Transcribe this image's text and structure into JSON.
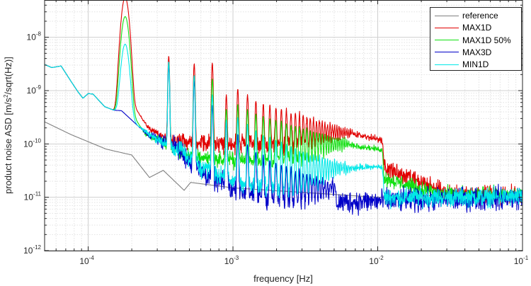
{
  "chart_data": {
    "type": "line",
    "xscale": "log",
    "yscale": "log",
    "xlabel": "frequency [Hz]",
    "ylabel_parts": [
      "product noise ASD [m/s",
      "2",
      "/sqrt(Hz)]"
    ],
    "xlim": [
      5e-05,
      0.1
    ],
    "ylim": [
      1e-12,
      5e-08
    ],
    "grid": "major and minor",
    "legend_position": "top-right",
    "x_ticks": [
      {
        "value": 0.0001,
        "base": "10",
        "exp": "-4"
      },
      {
        "value": 0.001,
        "base": "10",
        "exp": "-3"
      },
      {
        "value": 0.01,
        "base": "10",
        "exp": "-2"
      },
      {
        "value": 0.1,
        "base": "10",
        "exp": "-1"
      }
    ],
    "y_ticks": [
      {
        "value": 1e-12,
        "base": "10",
        "exp": "-12"
      },
      {
        "value": 1e-11,
        "base": "10",
        "exp": "-11"
      },
      {
        "value": 1e-10,
        "base": "10",
        "exp": "-10"
      },
      {
        "value": 1e-09,
        "base": "10",
        "exp": "-9"
      },
      {
        "value": 1e-08,
        "base": "10",
        "exp": "-8"
      }
    ],
    "harmonic_fundamental_hz": 0.00018,
    "harmonic_count": 60,
    "series": [
      {
        "name": "reference",
        "color": "#808080",
        "noise_dex": 0.0,
        "baseline": [
          [
            5e-05,
            2.6e-10
          ],
          [
            7.6e-05,
            1.5e-10
          ],
          [
            0.000133,
            8e-11
          ],
          [
            0.0002,
            6.2e-11
          ],
          [
            0.000265,
            2.35e-11
          ],
          [
            0.00033,
            3.2e-11
          ],
          [
            0.00046,
            1.35e-11
          ],
          [
            0.00051,
            1.9e-11
          ],
          [
            0.001,
            1.5e-11
          ],
          [
            0.01,
            1e-11
          ],
          [
            0.1,
            1.2e-11
          ]
        ],
        "peaks": []
      },
      {
        "name": "MAX1D",
        "color": "#e00000",
        "noise_dex": 0.12,
        "baseline": [
          [
            5e-05,
            3.1e-09
          ],
          [
            5.6e-05,
            2.7e-09
          ],
          [
            6.5e-05,
            2.9e-09
          ],
          [
            7.6e-05,
            1.5e-09
          ],
          [
            8.5e-05,
            9.5e-10
          ],
          [
            9.2e-05,
            7.2e-10
          ],
          [
            0.0001,
            8.8e-10
          ],
          [
            0.000108,
            8.6e-10
          ],
          [
            0.00013,
            5e-10
          ],
          [
            0.00015,
            4.3e-10
          ],
          [
            0.000165,
            4.5e-10
          ],
          [
            0.000195,
            6e-10
          ],
          [
            0.00022,
            4e-10
          ],
          [
            0.00026,
            2e-10
          ],
          [
            0.00032,
            1.4e-10
          ],
          [
            0.0005,
            1.1e-10
          ],
          [
            0.001,
            1e-10
          ],
          [
            0.003,
            9e-11
          ],
          [
            0.006,
            6e-11
          ],
          [
            0.01,
            4e-11
          ],
          [
            0.02,
            1.8e-11
          ],
          [
            0.03,
            1.2e-11
          ],
          [
            0.1,
            1.1e-11
          ]
        ],
        "peaks": [
          [
            0.00018,
            5.5e-08
          ],
          [
            0.00036,
            4.3e-09
          ],
          [
            0.00054,
            3.1e-09
          ],
          [
            0.00072,
            3.2e-09
          ],
          [
            0.0009,
            7e-10
          ],
          [
            0.00108,
            1e-09
          ],
          [
            0.0015,
            5e-10
          ],
          [
            0.003,
            2.5e-10
          ],
          [
            0.006,
            1.3e-10
          ],
          [
            0.01,
            6e-11
          ],
          [
            0.02,
            2e-11
          ]
        ]
      },
      {
        "name": "MAX1D 50%",
        "color": "#10e010",
        "noise_dex": 0.1,
        "baseline": [
          [
            5e-05,
            3.1e-09
          ],
          [
            5.6e-05,
            2.7e-09
          ],
          [
            6.5e-05,
            2.9e-09
          ],
          [
            7.6e-05,
            1.5e-09
          ],
          [
            8.5e-05,
            9.5e-10
          ],
          [
            9.2e-05,
            7.2e-10
          ],
          [
            0.0001,
            8.8e-10
          ],
          [
            0.000108,
            8.6e-10
          ],
          [
            0.00013,
            5e-10
          ],
          [
            0.00015,
            4.3e-10
          ],
          [
            0.000165,
            4.4e-10
          ],
          [
            0.00019,
            4.5e-10
          ],
          [
            0.00025,
            1.5e-10
          ],
          [
            0.00035,
            1e-10
          ],
          [
            0.0005,
            6e-11
          ],
          [
            0.0008,
            5e-11
          ],
          [
            0.003,
            4.8e-11
          ],
          [
            0.006,
            3.5e-11
          ],
          [
            0.01,
            2.5e-11
          ],
          [
            0.02,
            1.4e-11
          ],
          [
            0.03,
            1.1e-11
          ],
          [
            0.1,
            1.1e-11
          ]
        ],
        "peaks": [
          [
            0.00018,
            2.4e-08
          ],
          [
            0.00036,
            3.3e-09
          ],
          [
            0.00054,
            1.9e-09
          ],
          [
            0.00072,
            1.6e-09
          ],
          [
            0.0009,
            4e-10
          ],
          [
            0.00108,
            5e-10
          ],
          [
            0.0015,
            3e-10
          ],
          [
            0.003,
            1.5e-10
          ],
          [
            0.006,
            8e-11
          ],
          [
            0.01,
            4e-11
          ],
          [
            0.02,
            1.5e-11
          ]
        ]
      },
      {
        "name": "MAX3D",
        "color": "#0000c8",
        "noise_dex": 0.15,
        "baseline": [
          [
            5e-05,
            3.1e-09
          ],
          [
            5.6e-05,
            2.7e-09
          ],
          [
            6.5e-05,
            2.9e-09
          ],
          [
            7.6e-05,
            1.5e-09
          ],
          [
            8.5e-05,
            9.5e-10
          ],
          [
            9.2e-05,
            7.2e-10
          ],
          [
            0.0001,
            8.8e-10
          ],
          [
            0.000108,
            8.6e-10
          ],
          [
            0.00013,
            5e-10
          ],
          [
            0.00015,
            4.3e-10
          ],
          [
            0.00017,
            4.2e-10
          ],
          [
            0.00022,
            2.2e-10
          ],
          [
            0.00026,
            1.5e-10
          ],
          [
            0.0004,
            9e-11
          ],
          [
            0.0006,
            3e-11
          ],
          [
            0.001,
            1.4e-11
          ],
          [
            0.002,
            9e-12
          ],
          [
            0.005,
            8e-12
          ],
          [
            0.01,
            8.5e-12
          ],
          [
            0.03,
            9e-12
          ],
          [
            0.1,
            1e-11
          ]
        ],
        "peaks": [
          [
            0.00036,
            3e-09
          ],
          [
            0.00054,
            1.5e-09
          ],
          [
            0.00072,
            5e-10
          ],
          [
            0.0015,
            5e-11
          ],
          [
            0.005,
            1e-11
          ]
        ]
      },
      {
        "name": "MIN1D",
        "color": "#00e8e8",
        "noise_dex": 0.12,
        "baseline": [
          [
            5e-05,
            3.1e-09
          ],
          [
            5.6e-05,
            2.7e-09
          ],
          [
            6.5e-05,
            2.9e-09
          ],
          [
            7.6e-05,
            1.5e-09
          ],
          [
            8.5e-05,
            9.5e-10
          ],
          [
            9.2e-05,
            7.2e-10
          ],
          [
            0.0001,
            8.8e-10
          ],
          [
            0.000108,
            8.6e-10
          ],
          [
            0.00013,
            5e-10
          ],
          [
            0.00015,
            4.3e-10
          ],
          [
            0.00018,
            4.3e-10
          ],
          [
            0.00022,
            2.2e-10
          ],
          [
            0.0003,
            1.2e-10
          ],
          [
            0.00045,
            7e-11
          ],
          [
            0.0006,
            3.5e-11
          ],
          [
            0.001,
            2e-11
          ],
          [
            0.002,
            1.3e-11
          ],
          [
            0.005,
            1.1e-11
          ],
          [
            0.01,
            1e-11
          ],
          [
            0.03,
            1e-11
          ],
          [
            0.1,
            1e-11
          ]
        ],
        "peaks": [
          [
            0.00018,
            7e-09
          ],
          [
            0.00036,
            3.4e-09
          ],
          [
            0.00054,
            1.9e-09
          ],
          [
            0.00072,
            8e-10
          ],
          [
            0.0009,
            2.5e-10
          ],
          [
            0.00108,
            3e-10
          ],
          [
            0.0015,
            1.5e-10
          ],
          [
            0.003,
            6e-11
          ],
          [
            0.006,
            3e-11
          ],
          [
            0.01,
            2e-11
          ],
          [
            0.02,
            8e-12
          ]
        ]
      }
    ]
  }
}
